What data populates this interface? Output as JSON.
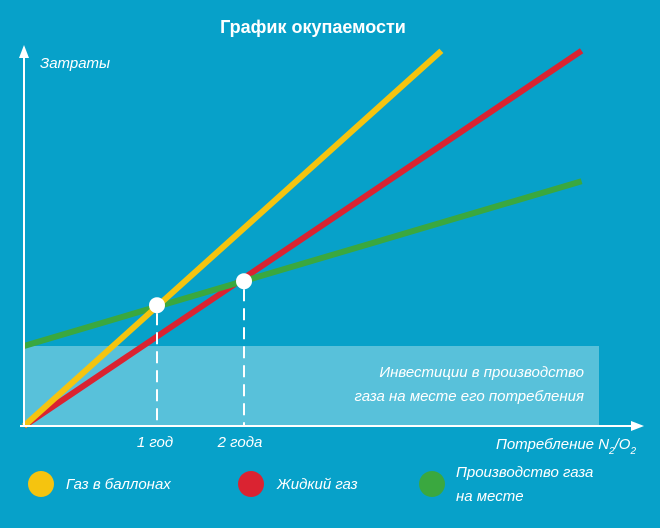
{
  "chart_data": {
    "type": "line",
    "title": "График окупаемости",
    "ylabel": "Затраты",
    "xlabel": "Потребление N",
    "xlabel_sub1": "2",
    "xlabel_sep": "/O",
    "xlabel_sub2": "2",
    "x_ticks": [
      "1 год",
      "2 года"
    ],
    "x_tick_values": [
      1,
      2
    ],
    "xlim": [
      0,
      7
    ],
    "ylim": [
      0,
      5.25
    ],
    "investment_label_line1": "Инвестиции в производство",
    "investment_label_line2": "газа на месте его потребления",
    "investment_level": 1.0,
    "series": [
      {
        "name": "Газ в баллонах",
        "color": "#f5c40f",
        "x": [
          0,
          4.91
        ],
        "y": [
          0,
          4.69
        ]
      },
      {
        "name": "Жидкий газ",
        "color": "#da2331",
        "x": [
          0,
          6.56
        ],
        "y": [
          0,
          4.69
        ]
      },
      {
        "name": "Производство газа на месте",
        "legend_line1": "Производство газа",
        "legend_line2": "на месте",
        "color": "#3aa83f",
        "x": [
          0,
          6.56
        ],
        "y": [
          1.0,
          3.06
        ]
      }
    ],
    "intersection_points": [
      {
        "x": 1.0,
        "y": 1.51
      },
      {
        "x": 2.0,
        "y": 1.81
      }
    ]
  },
  "colors": {
    "background": "#07a1c9",
    "axis": "#ffffff",
    "invest_box": "#79cde0"
  }
}
